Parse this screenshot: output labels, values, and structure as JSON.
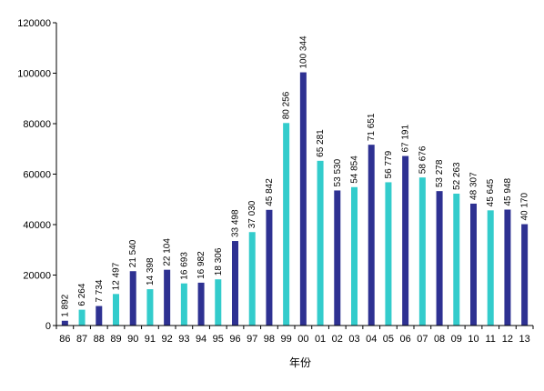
{
  "chart_data": {
    "type": "bar",
    "title": "",
    "xlabel": "年份",
    "ylabel": "",
    "ylim": [
      0,
      120000
    ],
    "yticks": [
      0,
      20000,
      40000,
      60000,
      80000,
      100000,
      120000
    ],
    "grid": false,
    "legend": "none",
    "colors": {
      "dark": "#2E3192",
      "light": "#33CCCC"
    },
    "categories": [
      "86",
      "87",
      "88",
      "89",
      "90",
      "91",
      "92",
      "93",
      "94",
      "95",
      "96",
      "97",
      "98",
      "99",
      "00",
      "01",
      "02",
      "03",
      "04",
      "05",
      "06",
      "07",
      "08",
      "09",
      "10",
      "11",
      "12",
      "13"
    ],
    "values": [
      1892,
      6264,
      7734,
      12497,
      21540,
      14398,
      22104,
      16693,
      16982,
      18306,
      33498,
      37030,
      45842,
      80256,
      100344,
      65281,
      53530,
      54854,
      71651,
      56779,
      67191,
      58676,
      53278,
      52263,
      48307,
      45645,
      45948,
      40170
    ],
    "value_labels": [
      "1 892",
      "6 264",
      "7 734",
      "12 497",
      "21 540",
      "14 398",
      "22 104",
      "16 693",
      "16 982",
      "18 306",
      "33 498",
      "37 030",
      "45 842",
      "80 256",
      "100 344",
      "65 281",
      "53 530",
      "54 854",
      "71 651",
      "56 779",
      "67 191",
      "58 676",
      "53 278",
      "52 263",
      "48 307",
      "45 645",
      "45 948",
      "40 170"
    ],
    "bar_colors": [
      "dark",
      "light",
      "dark",
      "light",
      "dark",
      "light",
      "dark",
      "light",
      "dark",
      "light",
      "dark",
      "light",
      "dark",
      "light",
      "dark",
      "light",
      "dark",
      "light",
      "dark",
      "light",
      "dark",
      "light",
      "dark",
      "light",
      "dark",
      "light",
      "dark",
      "dark"
    ]
  }
}
